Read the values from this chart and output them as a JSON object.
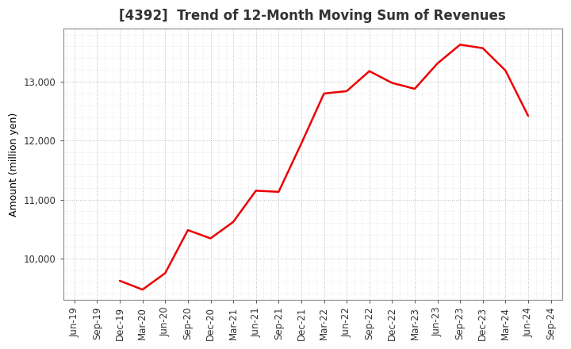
{
  "title": "[4392]  Trend of 12-Month Moving Sum of Revenues",
  "ylabel": "Amount (million yen)",
  "line_color": "#ee0000",
  "background_color": "#ffffff",
  "grid_color": "#bbbbbb",
  "x_labels": [
    "Jun-19",
    "Sep-19",
    "Dec-19",
    "Mar-20",
    "Jun-20",
    "Sep-20",
    "Dec-20",
    "Mar-21",
    "Jun-21",
    "Sep-21",
    "Dec-21",
    "Mar-22",
    "Jun-22",
    "Sep-22",
    "Dec-22",
    "Mar-23",
    "Jun-23",
    "Sep-23",
    "Dec-23",
    "Mar-24",
    "Jun-24",
    "Sep-24"
  ],
  "line_data": [
    [
      "Dec-19",
      9620
    ],
    [
      "Mar-20",
      9470
    ],
    [
      "Jun-20",
      9750
    ],
    [
      "Sep-20",
      10480
    ],
    [
      "Dec-20",
      10340
    ],
    [
      "Mar-21",
      10620
    ],
    [
      "Jun-21",
      11150
    ],
    [
      "Sep-21",
      11130
    ],
    [
      "Dec-21",
      11950
    ],
    [
      "Mar-22",
      12800
    ],
    [
      "Jun-22",
      12840
    ],
    [
      "Sep-22",
      13180
    ],
    [
      "Dec-22",
      12980
    ],
    [
      "Mar-23",
      12880
    ],
    [
      "Jun-23",
      13310
    ],
    [
      "Sep-23",
      13630
    ],
    [
      "Dec-23",
      13570
    ],
    [
      "Mar-24",
      13190
    ],
    [
      "Jun-24",
      12420
    ]
  ],
  "ylim": [
    9300,
    13900
  ],
  "yticks": [
    10000,
    11000,
    12000,
    13000
  ],
  "line_width": 1.8,
  "title_fontsize": 12,
  "label_fontsize": 9,
  "tick_fontsize": 8.5
}
